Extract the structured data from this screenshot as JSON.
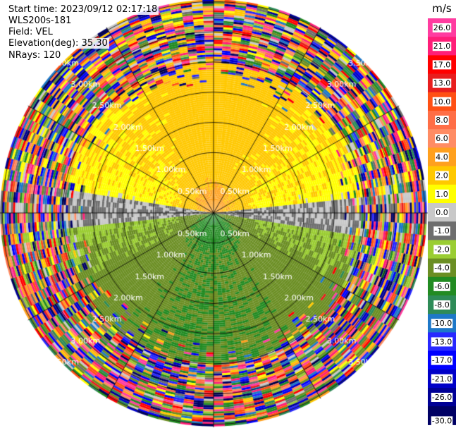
{
  "header": {
    "start_time": "Start time: 2023/09/12 02:17:18",
    "instrument": "WLS200s-181",
    "field": "Field: VEL",
    "elevation": "Elevation(deg): 35.30",
    "nrays": "NRays: 120"
  },
  "chart_data": {
    "type": "heatmap",
    "projection": "polar-ppi",
    "n_rays": 120,
    "elevation_deg": 35.3,
    "field": "VEL",
    "range_rings_km": [
      0.5,
      1.0,
      1.5,
      2.0,
      2.5,
      3.0,
      3.5
    ],
    "range_labels": [
      "0.50km",
      "1.00km",
      "1.50km",
      "2.00km",
      "2.50km",
      "3.00km",
      "3.50km"
    ],
    "max_range_km": 3.55,
    "azimuth_lines_deg": [
      0,
      30,
      60,
      90,
      120,
      150,
      180,
      210,
      240,
      270,
      300,
      330
    ],
    "velocity_pattern": {
      "north_half": "positive 1 to 4 m/s, strongest 4-6 m/s near center",
      "south_half": "negative -1 to -8 m/s, strongest near 180 deg",
      "east_west": "near 0 m/s",
      "beyond_km": 2.5,
      "beyond_note": "noisy random values beyond ~2.5 km"
    },
    "colorbar": {
      "unit": "m/s",
      "ticks": [
        "26.0",
        "21.0",
        "17.0",
        "13.0",
        "10.0",
        "8.0",
        "6.0",
        "4.0",
        "2.0",
        "1.0",
        "0.0",
        "-1.0",
        "-2.0",
        "-4.0",
        "-6.0",
        "-8.0",
        "-10.0",
        "-13.0",
        "-17.0",
        "-21.0",
        "-26.0",
        "-30.0"
      ],
      "bins": [
        {
          "min": 26,
          "max": 30,
          "color": "#ff3ca0"
        },
        {
          "min": 21,
          "max": 26,
          "color": "#ff1e78"
        },
        {
          "min": 17,
          "max": 21,
          "color": "#ff0000"
        },
        {
          "min": 13,
          "max": 17,
          "color": "#e81e1e"
        },
        {
          "min": 10,
          "max": 13,
          "color": "#ff5014"
        },
        {
          "min": 8,
          "max": 10,
          "color": "#ff6e46"
        },
        {
          "min": 6,
          "max": 8,
          "color": "#ff8c64"
        },
        {
          "min": 4,
          "max": 6,
          "color": "#ffa01e"
        },
        {
          "min": 2,
          "max": 4,
          "color": "#ffc800"
        },
        {
          "min": 1,
          "max": 2,
          "color": "#ffff00"
        },
        {
          "min": 0,
          "max": 1,
          "color": "#c8c8c8"
        },
        {
          "min": -1,
          "max": 0,
          "color": "#6e6e6e"
        },
        {
          "min": -2,
          "max": -1,
          "color": "#9acd32"
        },
        {
          "min": -4,
          "max": -2,
          "color": "#6b8e23"
        },
        {
          "min": -6,
          "max": -4,
          "color": "#228b22"
        },
        {
          "min": -8,
          "max": -6,
          "color": "#2e8b57"
        },
        {
          "min": -10,
          "max": -8,
          "color": "#1e78c8"
        },
        {
          "min": -13,
          "max": -10,
          "color": "#2828ff"
        },
        {
          "min": -17,
          "max": -13,
          "color": "#0000ff"
        },
        {
          "min": -21,
          "max": -17,
          "color": "#0000c8"
        },
        {
          "min": -26,
          "max": -21,
          "color": "#000096"
        },
        {
          "min": -30,
          "max": -26,
          "color": "#000064"
        }
      ]
    }
  }
}
